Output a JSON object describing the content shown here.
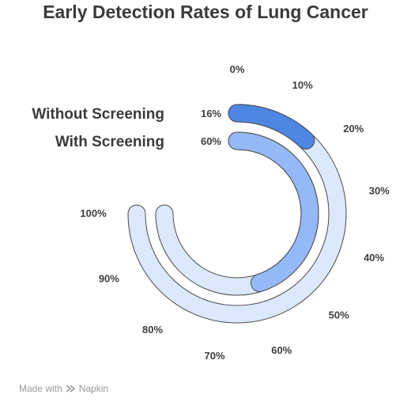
{
  "title": "Early Detection Rates of Lung Cancer",
  "credit": {
    "made_with": "Made with",
    "brand": "Napkin",
    "icon": "napkin-logo-icon"
  },
  "chart_data": {
    "type": "radial-bar",
    "title": "Early Detection Rates of Lung Cancer",
    "axis_range": [
      0,
      100
    ],
    "ticks": [
      "0%",
      "10%",
      "20%",
      "30%",
      "40%",
      "50%",
      "60%",
      "70%",
      "80%",
      "90%",
      "100%"
    ],
    "series": [
      {
        "name": "Without Screening",
        "value": 16,
        "value_label": "16%",
        "color": "#4e86e4",
        "track_color": "#dce8fb"
      },
      {
        "name": "With Screening",
        "value": 60,
        "value_label": "60%",
        "color": "#95b9f7",
        "track_color": "#dce8fb"
      }
    ],
    "legend": "left",
    "grid": false
  }
}
